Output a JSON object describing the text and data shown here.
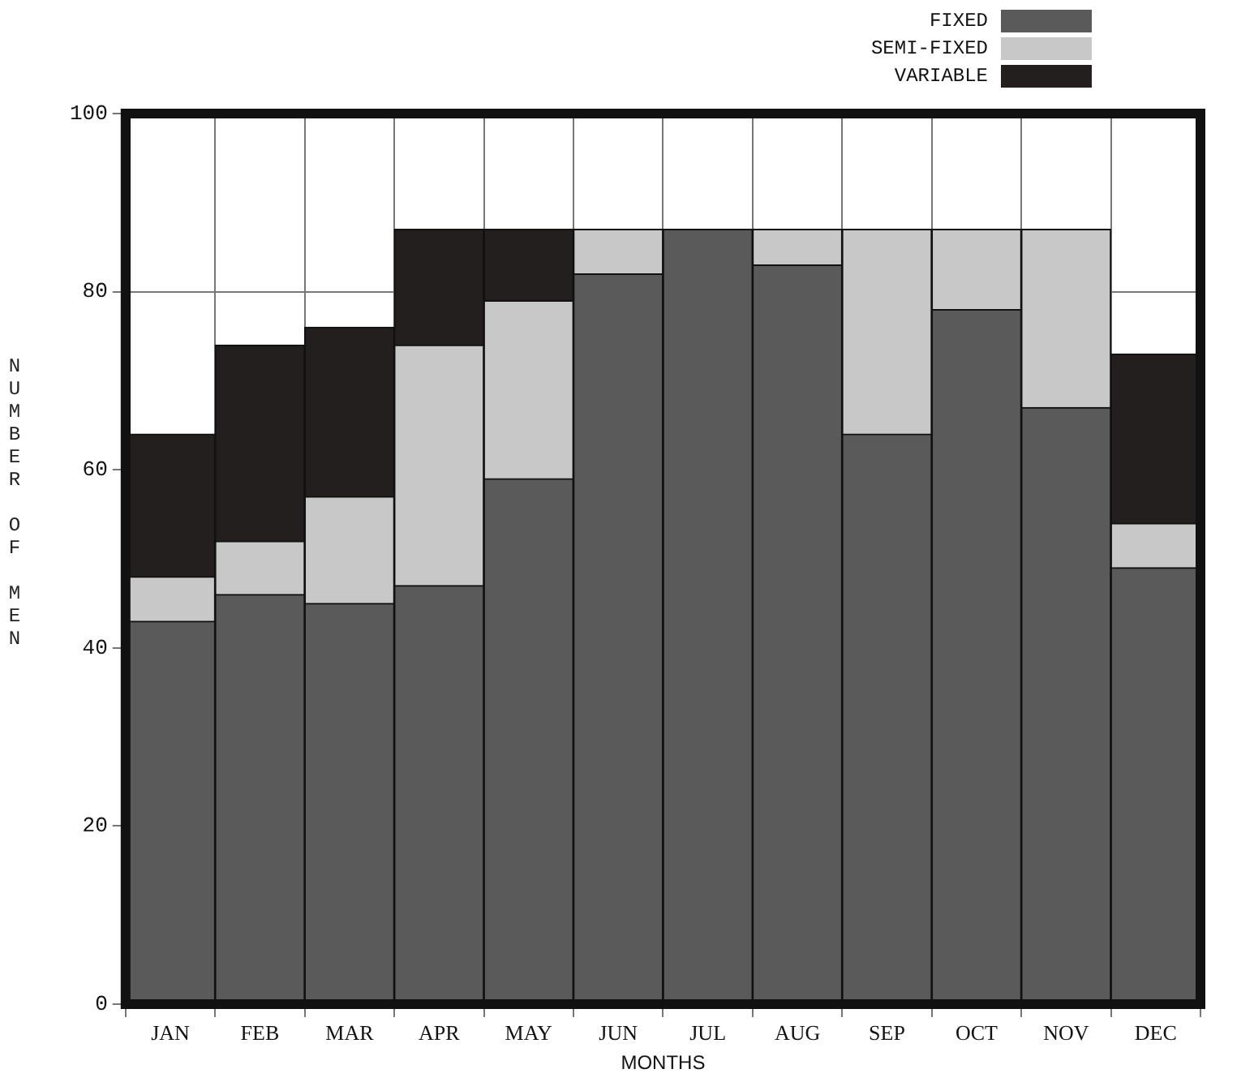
{
  "chart_data": {
    "type": "bar",
    "stacked": true,
    "xlabel": "MONTHS",
    "ylabel": "NUMBER OF MEN",
    "categories": [
      "JAN",
      "FEB",
      "MAR",
      "APR",
      "MAY",
      "JUN",
      "JUL",
      "AUG",
      "SEP",
      "OCT",
      "NOV",
      "DEC"
    ],
    "series": [
      {
        "name": "FIXED",
        "color": "#5a5a5a",
        "values": [
          43,
          46,
          45,
          47,
          59,
          82,
          87,
          83,
          64,
          78,
          67,
          49
        ]
      },
      {
        "name": "SEMI-FIXED",
        "color": "#c8c8c8",
        "values": [
          5,
          6,
          12,
          27,
          20,
          5,
          0,
          4,
          23,
          9,
          20,
          5
        ]
      },
      {
        "name": "VARIABLE",
        "color": "#231f1f",
        "values": [
          16,
          22,
          19,
          13,
          8,
          0,
          0,
          0,
          0,
          0,
          0,
          19
        ]
      }
    ],
    "ylim": [
      0,
      100
    ],
    "yticks": [
      0,
      20,
      40,
      60,
      80,
      100
    ],
    "grid": true,
    "legend": "top right"
  }
}
